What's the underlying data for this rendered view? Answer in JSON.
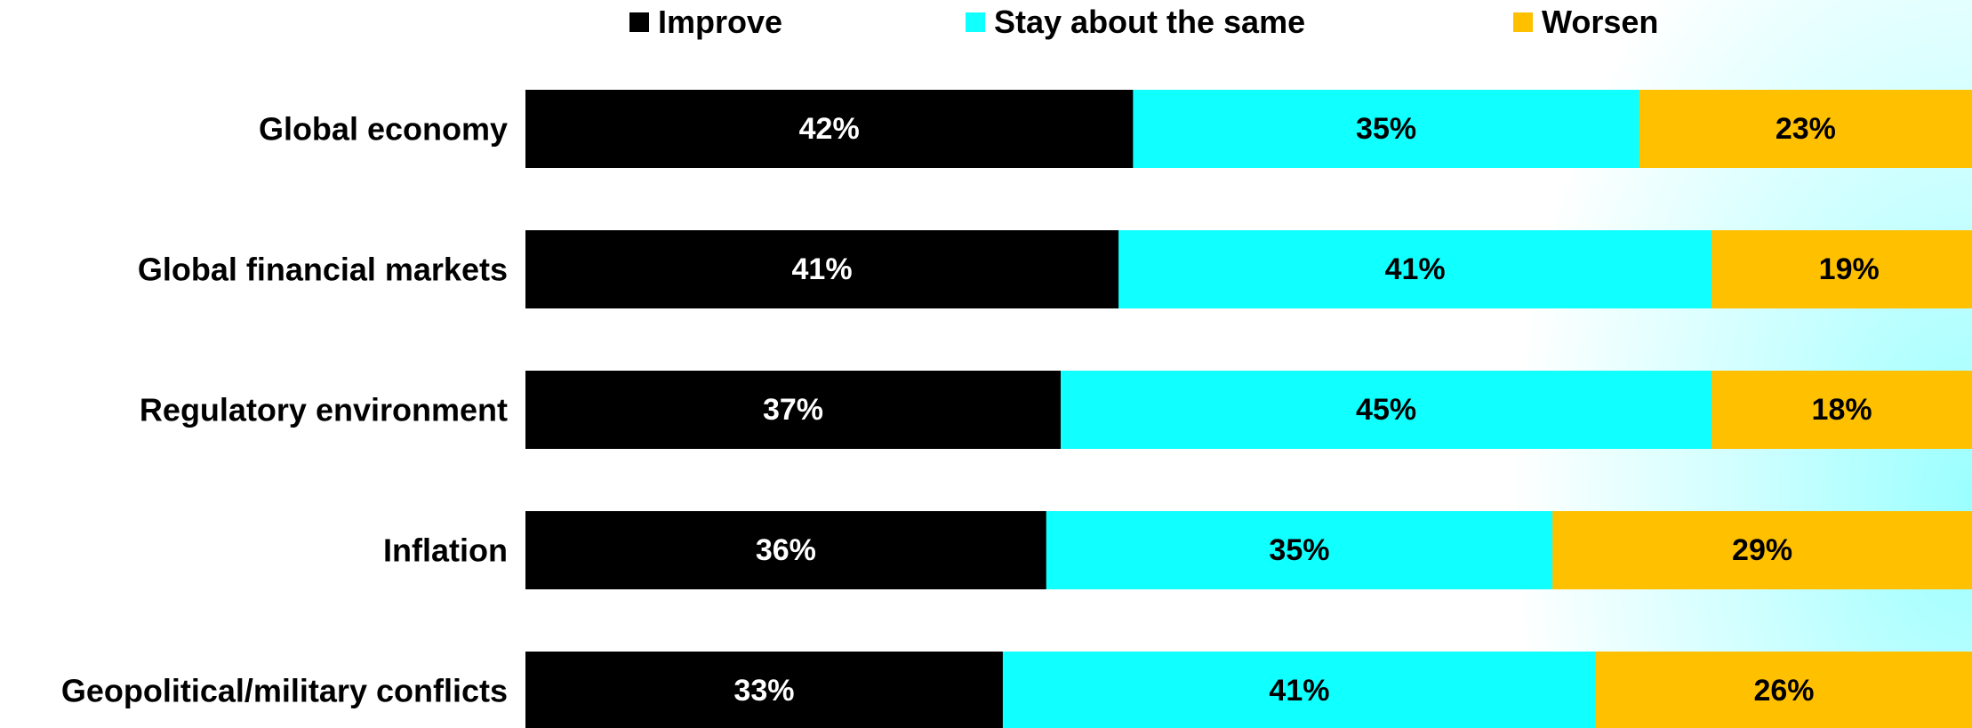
{
  "chart_data": {
    "type": "bar",
    "orientation": "horizontal",
    "stacked": true,
    "categories": [
      "Global economy",
      "Global financial markets",
      "Regulatory environment",
      "Inflation",
      "Geopolitical/military conflicts"
    ],
    "series": [
      {
        "name": "Improve",
        "color": "#000000",
        "label_color": "#ffffff",
        "values": [
          42,
          41,
          37,
          36,
          33
        ],
        "labels": [
          "42%",
          "41%",
          "37%",
          "36%",
          "33%"
        ]
      },
      {
        "name": "Stay about the same",
        "color": "#10FFFF",
        "label_color": "#000000",
        "values": [
          35,
          41,
          45,
          35,
          41
        ],
        "labels": [
          "35%",
          "41%",
          "45%",
          "35%",
          "41%"
        ]
      },
      {
        "name": "Worsen",
        "color": "#FFC000",
        "label_color": "#000000",
        "values": [
          23,
          19,
          18,
          29,
          26
        ],
        "labels": [
          "23%",
          "19%",
          "18%",
          "29%",
          "26%"
        ]
      }
    ],
    "xlim": [
      0,
      100
    ],
    "grid": false,
    "legend_position": "top"
  }
}
